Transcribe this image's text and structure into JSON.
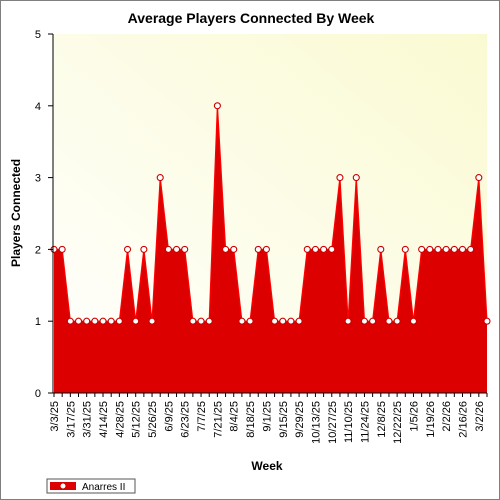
{
  "chart_data": {
    "type": "area",
    "title": "Average Players Connected By Week",
    "xlabel": "Week",
    "ylabel": "Players Connected",
    "ylim": [
      0,
      5
    ],
    "y_ticks": [
      0,
      1,
      2,
      3,
      4,
      5
    ],
    "grid": false,
    "legend_position": "bottom-left",
    "x_tick_labels": [
      "3/3/25",
      "3/17/25",
      "3/31/25",
      "4/14/25",
      "4/28/25",
      "5/12/25",
      "5/26/25",
      "6/9/25",
      "6/23/25",
      "7/7/25",
      "7/21/25",
      "8/4/25",
      "8/18/25",
      "9/1/25",
      "9/15/25",
      "9/29/25",
      "10/13/25",
      "10/27/25",
      "11/10/25",
      "11/24/25",
      "12/8/25",
      "12/22/25",
      "1/5/26",
      "1/19/26",
      "2/2/26",
      "2/16/26",
      "3/2/26"
    ],
    "series": [
      {
        "name": "Anarres II",
        "color": "#ff0000",
        "area_color": "#dd0000",
        "values": [
          2,
          2,
          1,
          1,
          1,
          1,
          1,
          1,
          1,
          2,
          1,
          2,
          1,
          3,
          2,
          2,
          2,
          1,
          1,
          1,
          4,
          2,
          2,
          1,
          1,
          2,
          2,
          1,
          1,
          1,
          1,
          2,
          2,
          2,
          2,
          3,
          1,
          3,
          1,
          1,
          2,
          1,
          1,
          2,
          1,
          2,
          2,
          2,
          2,
          2,
          2,
          2,
          3,
          1
        ]
      }
    ]
  },
  "colors": {
    "plot_background_top": "#fafad2",
    "plot_background_bottom": "#ffffff",
    "marker_fill": "#ffffff",
    "marker_edge": "#cc0000"
  }
}
